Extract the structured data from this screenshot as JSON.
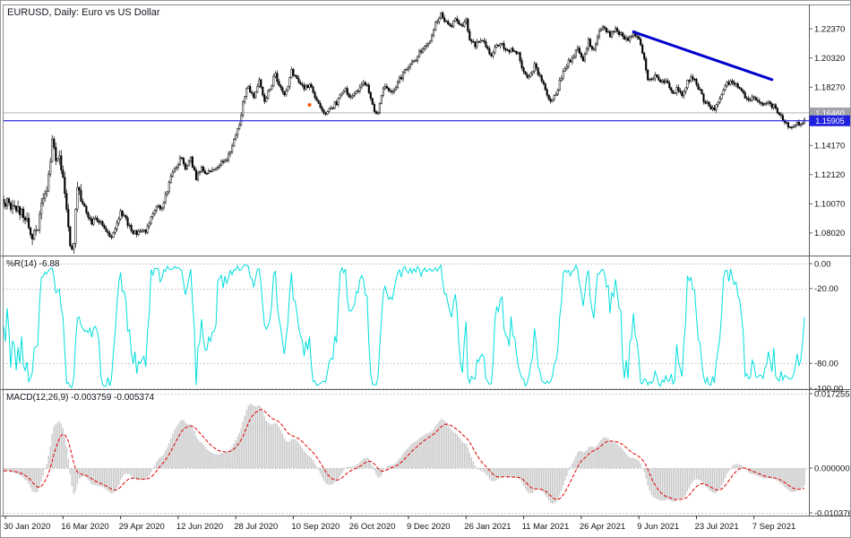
{
  "chart_data": {
    "type": "candlestick",
    "main": {
      "title": "EURUSD, Daily: Euro vs US Dollar",
      "bars": 446,
      "price_range": [
        1.0643,
        1.2408
      ],
      "price_axis": [
        {
          "label": "1.22370",
          "value": 1.2237
        },
        {
          "label": "1.20320",
          "value": 1.2032
        },
        {
          "label": "1.18270",
          "value": 1.1827
        },
        {
          "label": "1.14170",
          "value": 1.1417
        },
        {
          "label": "1.12120",
          "value": 1.1212
        },
        {
          "label": "1.10070",
          "value": 1.1007
        },
        {
          "label": "1.08020",
          "value": 1.0802
        }
      ],
      "last_price_tag": {
        "label": "1.15905",
        "value": 1.15905,
        "color": "#1f1fe0"
      },
      "ref_price_tag": {
        "label": "1.16460",
        "value": 1.1646,
        "color": "#a2a2aa",
        "line_color": "#b4b4b4"
      },
      "trendline": {
        "from_bar": 350,
        "from_price": 1.2215,
        "to_bar": 427,
        "to_price": 1.188,
        "color": "#0000cd",
        "width": 3
      },
      "marker": {
        "bar": 170,
        "price": 1.1702,
        "color": "#ff5500"
      },
      "candle_up_fill": "#ffffff",
      "candle_down_fill": "#000000",
      "candle_stroke": "#000000",
      "anchors": [
        [
          0,
          1.103
        ],
        [
          4,
          1.1
        ],
        [
          8,
          1.0965
        ],
        [
          12,
          1.0915
        ],
        [
          16,
          1.079
        ],
        [
          19,
          1.086
        ],
        [
          21,
          1.1005
        ],
        [
          24,
          1.113
        ],
        [
          27,
          1.144
        ],
        [
          29,
          1.13
        ],
        [
          31,
          1.1365
        ],
        [
          33,
          1.118
        ],
        [
          35,
          1.095
        ],
        [
          37,
          1.069
        ],
        [
          39,
          1.075
        ],
        [
          41,
          1.113
        ],
        [
          43,
          1.103
        ],
        [
          46,
          1.095
        ],
        [
          49,
          1.086
        ],
        [
          51,
          1.092
        ],
        [
          54,
          1.087
        ],
        [
          57,
          1.082
        ],
        [
          60,
          1.076
        ],
        [
          63,
          1.087
        ],
        [
          65,
          1.096
        ],
        [
          68,
          1.09
        ],
        [
          71,
          1.081
        ],
        [
          75,
          1.08
        ],
        [
          79,
          1.081
        ],
        [
          82,
          1.091
        ],
        [
          85,
          1.098
        ],
        [
          88,
          1.099
        ],
        [
          91,
          1.11
        ],
        [
          94,
          1.123
        ],
        [
          97,
          1.129
        ],
        [
          99,
          1.134
        ],
        [
          101,
          1.1256
        ],
        [
          104,
          1.132
        ],
        [
          107,
          1.118
        ],
        [
          110,
          1.126
        ],
        [
          113,
          1.122
        ],
        [
          116,
          1.125
        ],
        [
          119,
          1.127
        ],
        [
          122,
          1.13
        ],
        [
          125,
          1.134
        ],
        [
          128,
          1.145
        ],
        [
          131,
          1.157
        ],
        [
          133,
          1.172
        ],
        [
          136,
          1.1847
        ],
        [
          137,
          1.1778
        ],
        [
          139,
          1.176
        ],
        [
          142,
          1.1875
        ],
        [
          145,
          1.174
        ],
        [
          148,
          1.181
        ],
        [
          151,
          1.193
        ],
        [
          153,
          1.183
        ],
        [
          156,
          1.178
        ],
        [
          158,
          1.184
        ],
        [
          160,
          1.194
        ],
        [
          162,
          1.191
        ],
        [
          164,
          1.185
        ],
        [
          167,
          1.1815
        ],
        [
          170,
          1.1845
        ],
        [
          173,
          1.176
        ],
        [
          176,
          1.17
        ],
        [
          179,
          1.163
        ],
        [
          182,
          1.168
        ],
        [
          185,
          1.172
        ],
        [
          188,
          1.179
        ],
        [
          190,
          1.181
        ],
        [
          192,
          1.174
        ],
        [
          195,
          1.177
        ],
        [
          198,
          1.182
        ],
        [
          201,
          1.186
        ],
        [
          203,
          1.179
        ],
        [
          206,
          1.165
        ],
        [
          208,
          1.164
        ],
        [
          211,
          1.183
        ],
        [
          213,
          1.181
        ],
        [
          216,
          1.178
        ],
        [
          219,
          1.186
        ],
        [
          222,
          1.192
        ],
        [
          225,
          1.196
        ],
        [
          228,
          1.201
        ],
        [
          231,
          1.207
        ],
        [
          234,
          1.212
        ],
        [
          237,
          1.216
        ],
        [
          240,
          1.228
        ],
        [
          243,
          1.2345
        ],
        [
          245,
          1.229
        ],
        [
          248,
          1.225
        ],
        [
          251,
          1.23
        ],
        [
          254,
          1.226
        ],
        [
          257,
          1.229
        ],
        [
          259,
          1.216
        ],
        [
          262,
          1.212
        ],
        [
          265,
          1.217
        ],
        [
          268,
          1.211
        ],
        [
          271,
          1.204
        ],
        [
          274,
          1.212
        ],
        [
          277,
          1.213
        ],
        [
          280,
          1.208
        ],
        [
          283,
          1.209
        ],
        [
          286,
          1.207
        ],
        [
          289,
          1.193
        ],
        [
          292,
          1.19
        ],
        [
          295,
          1.198
        ],
        [
          298,
          1.19
        ],
        [
          301,
          1.181
        ],
        [
          304,
          1.173
        ],
        [
          307,
          1.178
        ],
        [
          310,
          1.19
        ],
        [
          313,
          1.198
        ],
        [
          316,
          1.204
        ],
        [
          319,
          1.209
        ],
        [
          322,
          1.202
        ],
        [
          325,
          1.215
        ],
        [
          328,
          1.208
        ],
        [
          331,
          1.222
        ],
        [
          334,
          1.225
        ],
        [
          337,
          1.219
        ],
        [
          340,
          1.223
        ],
        [
          344,
          1.219
        ],
        [
          347,
          1.216
        ],
        [
          350,
          1.22
        ],
        [
          352,
          1.218
        ],
        [
          354,
          1.212
        ],
        [
          356,
          1.202
        ],
        [
          358,
          1.188
        ],
        [
          360,
          1.1865
        ],
        [
          362,
          1.193
        ],
        [
          365,
          1.185
        ],
        [
          368,
          1.187
        ],
        [
          371,
          1.179
        ],
        [
          374,
          1.181
        ],
        [
          377,
          1.177
        ],
        [
          380,
          1.187
        ],
        [
          383,
          1.189
        ],
        [
          386,
          1.183
        ],
        [
          389,
          1.174
        ],
        [
          392,
          1.17
        ],
        [
          395,
          1.166
        ],
        [
          398,
          1.175
        ],
        [
          401,
          1.184
        ],
        [
          404,
          1.187
        ],
        [
          407,
          1.184
        ],
        [
          410,
          1.181
        ],
        [
          413,
          1.173
        ],
        [
          416,
          1.176
        ],
        [
          419,
          1.172
        ],
        [
          422,
          1.169
        ],
        [
          424,
          1.172
        ],
        [
          428,
          1.169
        ],
        [
          431,
          1.164
        ],
        [
          433,
          1.16
        ],
        [
          436,
          1.156
        ],
        [
          438,
          1.1528
        ],
        [
          441,
          1.157
        ],
        [
          443,
          1.155
        ],
        [
          445,
          1.1592
        ]
      ]
    },
    "wpr": {
      "label": "%R(14) -6.88",
      "period": 14,
      "last_value": -6.88,
      "color": "#00dede",
      "range": [
        0,
        -100
      ],
      "axis": [
        {
          "label": "0.00",
          "value": 0
        },
        {
          "label": "-20.00",
          "value": -20
        },
        {
          "label": "-80.00",
          "value": -80
        },
        {
          "label": "-100.00",
          "value": -100
        }
      ]
    },
    "macd": {
      "label": "MACD(12,26,9) -0.003759 -0.005374",
      "fast": 12,
      "slow": 26,
      "signal": 9,
      "last_macd": -0.003759,
      "last_signal": -0.005374,
      "hist_color": "#c8c8c8",
      "signal_color": "#e00000",
      "range": [
        -0.010376,
        0.017255
      ],
      "axis": [
        {
          "label": "0.017255",
          "value": 0.017255
        },
        {
          "label": "0.000000",
          "value": 0
        },
        {
          "label": "-0.010376",
          "value": -0.010376
        }
      ]
    },
    "time_axis": {
      "ticks": [
        {
          "bar": 1,
          "label": "30 Jan 2020"
        },
        {
          "bar": 33,
          "label": "16 Mar 2020"
        },
        {
          "bar": 65,
          "label": "29 Apr 2020"
        },
        {
          "bar": 97,
          "label": "12 Jun 2020"
        },
        {
          "bar": 129,
          "label": "28 Jul 2020"
        },
        {
          "bar": 161,
          "label": "10 Sep 2020"
        },
        {
          "bar": 193,
          "label": "26 Oct 2020"
        },
        {
          "bar": 225,
          "label": "9 Dec 2020"
        },
        {
          "bar": 257,
          "label": "26 Jan 2021"
        },
        {
          "bar": 289,
          "label": "11 Mar 2021"
        },
        {
          "bar": 321,
          "label": "26 Apr 2021"
        },
        {
          "bar": 353,
          "label": "9 Jun 2021"
        },
        {
          "bar": 385,
          "label": "23 Jul 2021"
        },
        {
          "bar": 417,
          "label": "7 Sep 2021"
        }
      ]
    }
  }
}
